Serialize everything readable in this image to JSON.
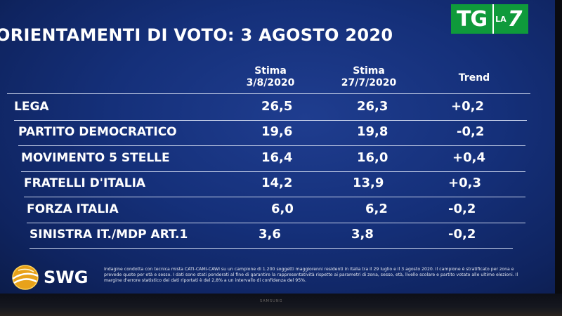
{
  "title": "ORIENTAMENTI DI VOTO: 3 AGOSTO 2020",
  "channel_logo": {
    "tg": "TG",
    "la": "LA",
    "seven": "7"
  },
  "columns": {
    "stima1": {
      "line1": "Stima",
      "line2": "3/8/2020"
    },
    "stima2": {
      "line1": "Stima",
      "line2": "27/7/2020"
    },
    "trend": "Trend"
  },
  "rows": [
    {
      "party": "LEGA",
      "stima1": "26,5",
      "stima2": "26,3",
      "trend": "+0,2"
    },
    {
      "party": "PARTITO DEMOCRATICO",
      "stima1": "19,6",
      "stima2": "19,8",
      "trend": "-0,2"
    },
    {
      "party": "MOVIMENTO 5 STELLE",
      "stima1": "16,4",
      "stima2": "16,0",
      "trend": "+0,4"
    },
    {
      "party": "FRATELLI D'ITALIA",
      "stima1": "14,2",
      "stima2": "13,9",
      "trend": "+0,3"
    },
    {
      "party": "FORZA ITALIA",
      "stima1": "6,0",
      "stima2": "6,2",
      "trend": "-0,2"
    },
    {
      "party": "SINISTRA IT./MDP ART.1",
      "stima1": "3,6",
      "stima2": "3,8",
      "trend": "-0,2"
    }
  ],
  "pollster": "SWG",
  "footnote": "Indagine condotta con tecnica mista CATI-CAMI-CAWI su un campione di 1.200 soggetti maggiorenni residenti in Italia tra il 29 luglio e il 3 agosto 2020. Il campione è stratificato per zona e prevede quote per età e sesso. I dati sono stati ponderati al fine di garantire la rappresentatività rispetto ai parametri di zona, sesso, età, livello scolare e partito votato alle ultime elezioni. Il margine d'errore statistico dei dati riportati è del 2,8% a un intervallo di confidenza del 95%.",
  "tv_brand": "SAMSUNG",
  "colors": {
    "background": "#15307a",
    "logo_green": "#0f9a3b",
    "text": "#ffffff"
  }
}
